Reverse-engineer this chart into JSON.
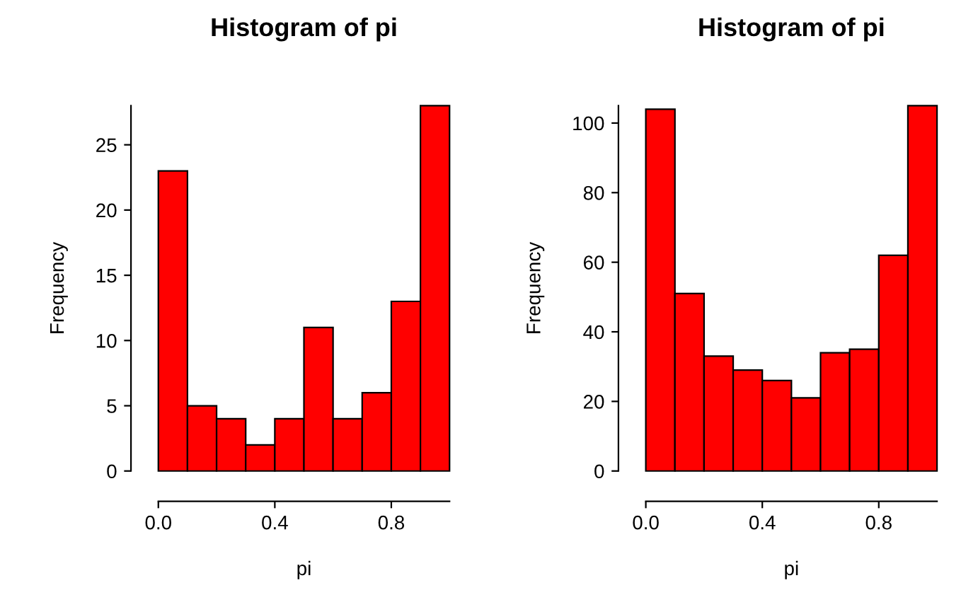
{
  "chart_data": [
    {
      "type": "histogram",
      "title": "Histogram of pi",
      "xlabel": "pi",
      "ylabel": "Frequency",
      "color": "#ff0000",
      "bins": [
        0.0,
        0.1,
        0.2,
        0.3,
        0.4,
        0.5,
        0.6,
        0.7,
        0.8,
        0.9,
        1.0
      ],
      "values": [
        23,
        5,
        4,
        2,
        4,
        11,
        4,
        6,
        13,
        28
      ],
      "xlim": [
        0,
        1
      ],
      "ylim": [
        0,
        28
      ],
      "xticks": [
        {
          "value": 0,
          "label": "0.0"
        },
        {
          "value": 0.4,
          "label": "0.4"
        },
        {
          "value": 0.8,
          "label": "0.8"
        }
      ],
      "yticks": [
        0,
        5,
        10,
        15,
        20,
        25
      ],
      "grid": false
    },
    {
      "type": "histogram",
      "title": "Histogram of pi",
      "xlabel": "pi",
      "ylabel": "Frequency",
      "color": "#ff0000",
      "bins": [
        0.0,
        0.1,
        0.2,
        0.3,
        0.4,
        0.5,
        0.6,
        0.7,
        0.8,
        0.9,
        1.0
      ],
      "values": [
        104,
        51,
        33,
        29,
        26,
        21,
        34,
        35,
        62,
        105
      ],
      "xlim": [
        0,
        1
      ],
      "ylim": [
        0,
        105
      ],
      "xticks": [
        {
          "value": 0,
          "label": "0.0"
        },
        {
          "value": 0.4,
          "label": "0.4"
        },
        {
          "value": 0.8,
          "label": "0.8"
        }
      ],
      "yticks": [
        0,
        20,
        40,
        60,
        80,
        100
      ],
      "grid": false
    }
  ]
}
